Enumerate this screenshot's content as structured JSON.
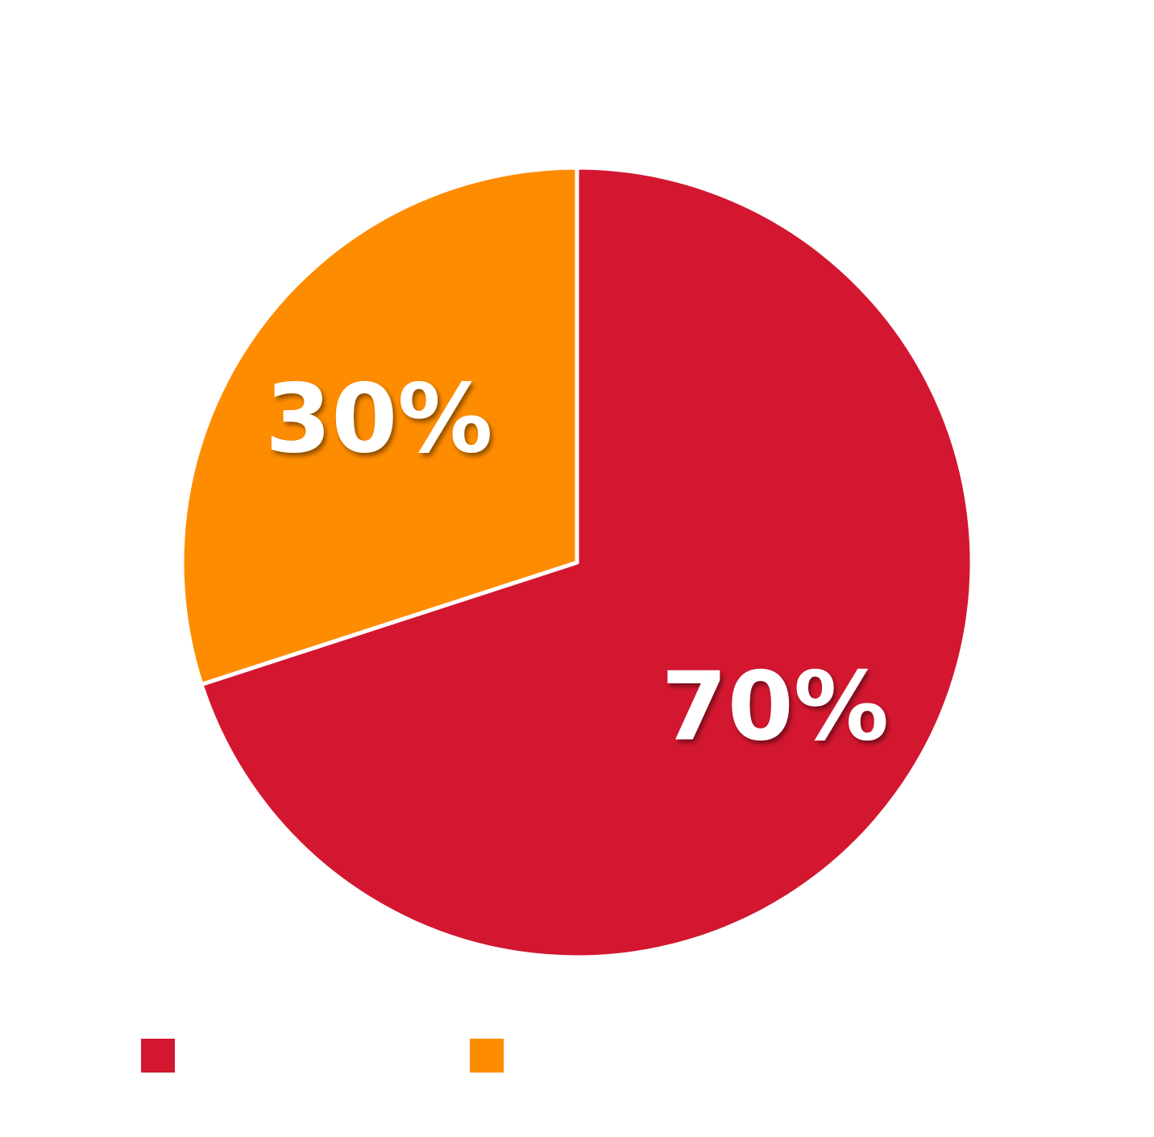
{
  "chart_data": {
    "type": "pie",
    "title": "",
    "categories": [
      "",
      ""
    ],
    "values": [
      70,
      30
    ],
    "data_labels": [
      "70%",
      "30%"
    ],
    "colors": [
      "#d31730",
      "#fe8c00"
    ],
    "start_angle_deg": 0,
    "direction": "clockwise",
    "legend": {
      "position": "bottom",
      "entries": [
        {
          "label": "",
          "color": "#d31730"
        },
        {
          "label": "",
          "color": "#fe8c00"
        }
      ]
    }
  }
}
